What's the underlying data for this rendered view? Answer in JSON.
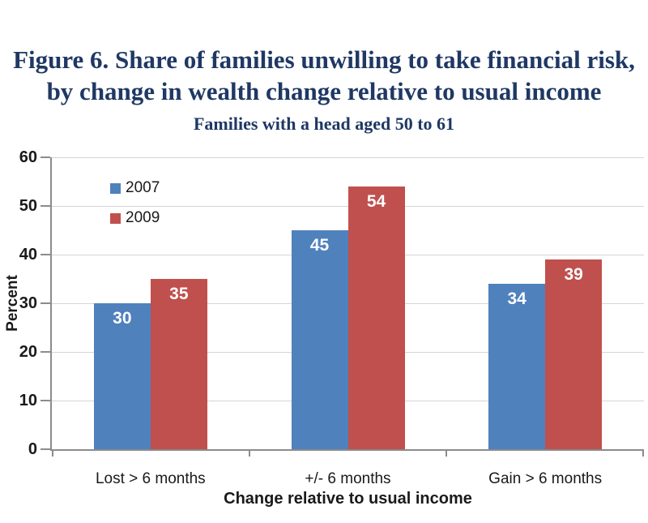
{
  "figure": {
    "title_line1": "Figure 6. Share of families unwilling to take financial risk,",
    "title_line2": "by change in wealth change relative to usual income",
    "subtitle": "Families with a head aged 50 to 61",
    "title_color": "#1F3864"
  },
  "chart_data": {
    "type": "bar",
    "title": "Figure 6. Share of families unwilling to take financial risk, by change in wealth change relative to usual income",
    "subtitle": "Families with a head aged 50 to 61",
    "categories": [
      "Lost > 6 months",
      "+/- 6 months",
      "Gain > 6 months"
    ],
    "series": [
      {
        "name": "2007",
        "color": "#4F81BD",
        "values": [
          30,
          45,
          34
        ]
      },
      {
        "name": "2009",
        "color": "#C0504D",
        "values": [
          35,
          54,
          39
        ]
      }
    ],
    "xlabel": "Change relative to usual income",
    "ylabel": "Percent",
    "ylim": [
      0,
      60
    ],
    "yticks": [
      0,
      10,
      20,
      30,
      40,
      50,
      60
    ],
    "grid": "horizontal",
    "legend_position": "inside-top-left",
    "bar_labels": "white, inside top of bars",
    "gridline_color": "#D5D5D5",
    "axis_line_color": "#8C8C8C",
    "tick_label_color": "#1A1A1A",
    "bar_label_color": "#FFFFFF"
  }
}
